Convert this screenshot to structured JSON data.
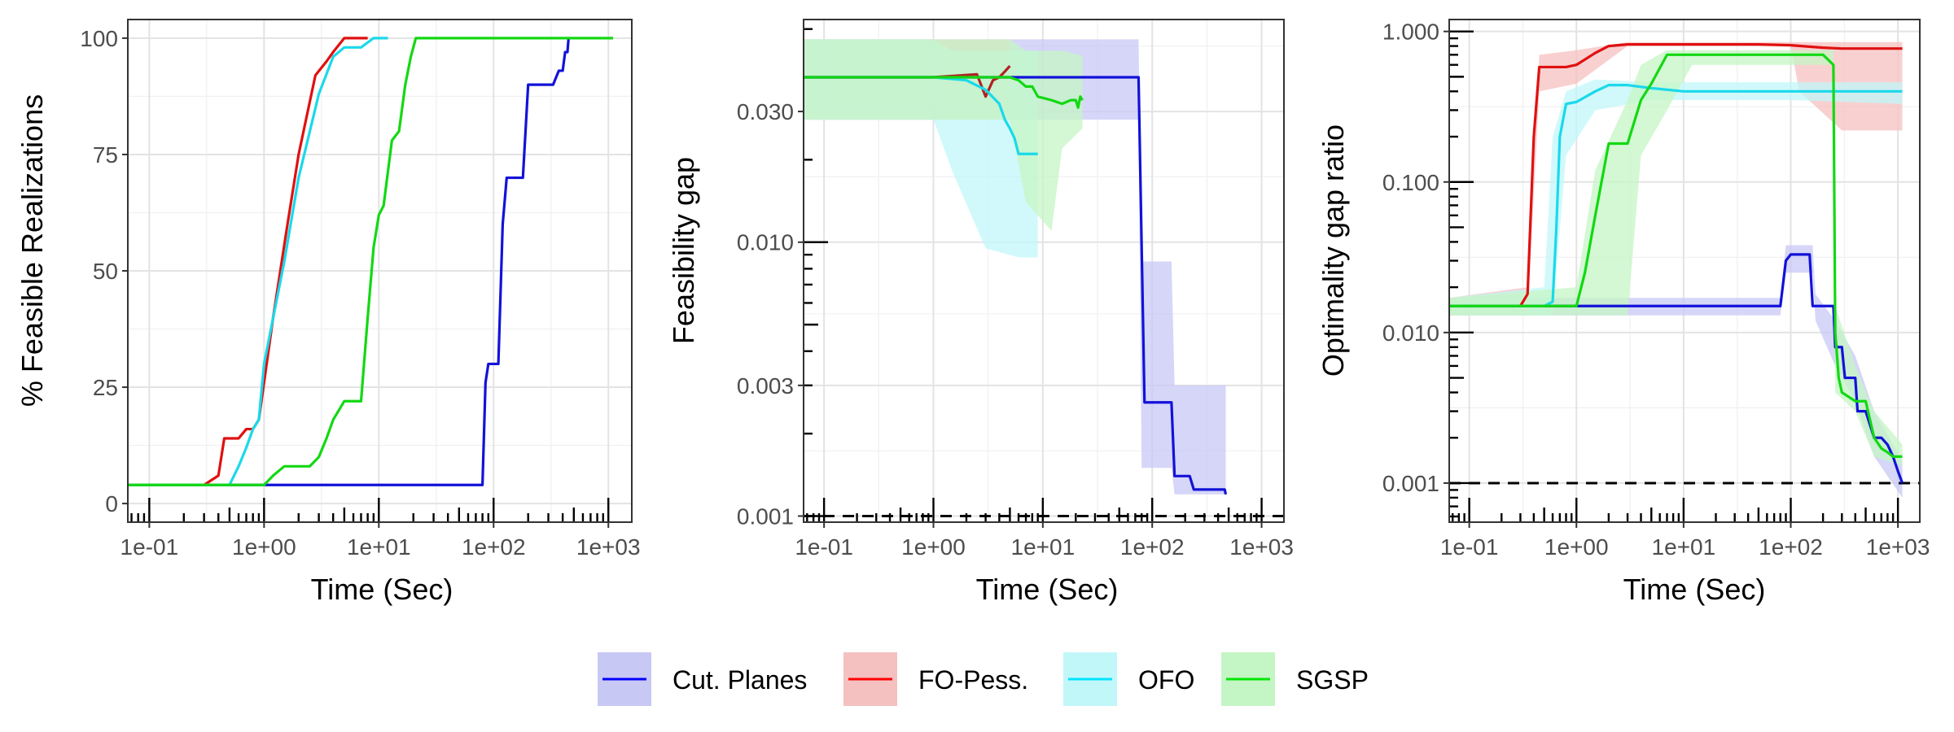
{
  "chart_data": [
    {
      "type": "line",
      "xlabel": "Time (Sec)",
      "ylabel": "% Feasible Realizations",
      "xscale": "log",
      "yscale": "linear",
      "xlim": [
        0.065,
        1600
      ],
      "ylim": [
        -4,
        104
      ],
      "xticks": [
        0.1,
        1,
        10,
        100,
        1000
      ],
      "xtick_labels": [
        "1e-01",
        "1e+00",
        "1e+01",
        "1e+02",
        "1e+03"
      ],
      "yticks": [
        0,
        25,
        50,
        75,
        100
      ],
      "ytick_labels": [
        "0",
        "25",
        "50",
        "75",
        "100"
      ],
      "grid": true,
      "series": [
        {
          "name": "Cut. Planes",
          "x": [
            0.065,
            80,
            85,
            90,
            110,
            120,
            130,
            180,
            200,
            290,
            330,
            370,
            400,
            420,
            440,
            450
          ],
          "y": [
            4,
            4,
            26,
            30,
            30,
            60,
            70,
            70,
            90,
            90,
            90,
            93,
            93,
            97,
            97,
            100
          ]
        },
        {
          "name": "FO-Pess.",
          "x": [
            0.065,
            0.3,
            0.4,
            0.45,
            0.6,
            0.7,
            0.8,
            0.9,
            1.0,
            1.2,
            1.6,
            2.0,
            2.8,
            3.5,
            4.0,
            5.0,
            6.0,
            8.0
          ],
          "y": [
            4,
            4,
            6,
            14,
            14,
            16,
            16,
            18,
            26,
            40,
            60,
            75,
            92,
            95,
            97,
            100,
            100,
            100
          ]
        },
        {
          "name": "OFO",
          "x": [
            0.065,
            0.5,
            0.6,
            0.7,
            0.8,
            0.9,
            1.0,
            1.5,
            2.0,
            3.0,
            4.0,
            5.0,
            7.0,
            9.0,
            10,
            12
          ],
          "y": [
            4,
            4,
            8,
            12,
            16,
            18,
            30,
            52,
            70,
            88,
            96,
            98,
            98,
            100,
            100,
            100
          ]
        },
        {
          "name": "SGSP",
          "x": [
            0.065,
            1.0,
            1.2,
            1.5,
            2.0,
            2.5,
            3.0,
            3.5,
            4.0,
            5.0,
            6.0,
            7.0,
            8.0,
            9.0,
            10,
            11,
            13,
            15,
            17,
            19,
            21,
            23,
            30,
            100,
            500,
            1100
          ],
          "y": [
            4,
            4,
            6,
            8,
            8,
            8,
            10,
            14,
            18,
            22,
            22,
            22,
            40,
            55,
            62,
            64,
            78,
            80,
            90,
            96,
            100,
            100,
            100,
            100,
            100,
            100
          ]
        }
      ]
    },
    {
      "type": "line",
      "xlabel": "Time (Sec)",
      "ylabel": "Feasibility gap",
      "xscale": "log",
      "yscale": "log",
      "xlim": [
        0.065,
        1600
      ],
      "ylim": [
        0.00095,
        0.065
      ],
      "xticks": [
        0.1,
        1,
        10,
        100,
        1000
      ],
      "xtick_labels": [
        "1e-01",
        "1e+00",
        "1e+01",
        "1e+02",
        "1e+03"
      ],
      "yticks": [
        0.001,
        0.003,
        0.01,
        0.03
      ],
      "ytick_labels": [
        "0.001",
        "0.003",
        "0.010",
        "0.030"
      ],
      "reference_line": 0.001,
      "grid": true,
      "series": [
        {
          "name": "Cut. Planes",
          "x": [
            0.065,
            1,
            10,
            60,
            75,
            85,
            150,
            160,
            220,
            240,
            330,
            460,
            470
          ],
          "y": [
            0.04,
            0.04,
            0.04,
            0.04,
            0.04,
            0.0026,
            0.0026,
            0.0014,
            0.0014,
            0.00125,
            0.00125,
            0.00125,
            0.0012
          ],
          "band": [
            [
              0.065,
              0.028,
              0.055
            ],
            [
              75,
              0.028,
              0.055
            ],
            [
              80,
              0.0015,
              0.0085
            ],
            [
              150,
              0.0015,
              0.0085
            ],
            [
              160,
              0.0012,
              0.003
            ],
            [
              470,
              0.0012,
              0.003
            ]
          ]
        },
        {
          "name": "FO-Pess.",
          "x": [
            0.065,
            1.0,
            2.5,
            3.0,
            3.5,
            4.0,
            4.5,
            5.0
          ],
          "y": [
            0.04,
            0.04,
            0.041,
            0.034,
            0.039,
            0.04,
            0.042,
            0.044
          ],
          "band": [
            [
              0.065,
              0.028,
              0.055
            ],
            [
              5.0,
              0.028,
              0.055
            ]
          ]
        },
        {
          "name": "OFO",
          "x": [
            0.065,
            1.0,
            2.0,
            3.0,
            4.0,
            4.5,
            5.0,
            5.5,
            6.0,
            8.0,
            9.0
          ],
          "y": [
            0.04,
            0.04,
            0.039,
            0.036,
            0.032,
            0.028,
            0.026,
            0.024,
            0.021,
            0.021,
            0.021
          ],
          "band": [
            [
              0.065,
              0.028,
              0.055
            ],
            [
              1.0,
              0.028,
              0.055
            ],
            [
              1.5,
              0.018,
              0.05
            ],
            [
              3.0,
              0.0095,
              0.05
            ],
            [
              6.0,
              0.0088,
              0.05
            ],
            [
              9.0,
              0.0088,
              0.05
            ]
          ]
        },
        {
          "name": "SGSP",
          "x": [
            0.065,
            1.0,
            2.0,
            3.0,
            5.0,
            6.0,
            7.0,
            8.0,
            9.0,
            12,
            15,
            18,
            20,
            21,
            22,
            23
          ],
          "y": [
            0.04,
            0.04,
            0.04,
            0.04,
            0.04,
            0.039,
            0.037,
            0.037,
            0.034,
            0.033,
            0.032,
            0.033,
            0.033,
            0.031,
            0.034,
            0.033
          ],
          "band": [
            [
              0.065,
              0.028,
              0.055
            ],
            [
              5.0,
              0.028,
              0.055
            ],
            [
              7.0,
              0.014,
              0.05
            ],
            [
              12,
              0.011,
              0.05
            ],
            [
              15,
              0.022,
              0.05
            ],
            [
              23,
              0.026,
              0.048
            ]
          ]
        }
      ]
    },
    {
      "type": "line",
      "xlabel": "Time (Sec)",
      "ylabel": "Optimality gap ratio",
      "xscale": "log",
      "yscale": "log",
      "xlim": [
        0.065,
        1600
      ],
      "ylim": [
        0.00055,
        1.2
      ],
      "xticks": [
        0.1,
        1,
        10,
        100,
        1000
      ],
      "xtick_labels": [
        "1e-01",
        "1e+00",
        "1e+01",
        "1e+02",
        "1e+03"
      ],
      "yticks": [
        0.001,
        0.01,
        0.1,
        1
      ],
      "ytick_labels": [
        "0.001",
        "0.010",
        "0.100",
        "1.000"
      ],
      "reference_line": 0.001,
      "grid": true,
      "series": [
        {
          "name": "Cut. Planes",
          "x": [
            0.065,
            1,
            10,
            80,
            90,
            100,
            120,
            150,
            160,
            170,
            250,
            260,
            300,
            320,
            400,
            420,
            500,
            600,
            700,
            800,
            900,
            1000,
            1100
          ],
          "y": [
            0.015,
            0.015,
            0.015,
            0.015,
            0.03,
            0.033,
            0.033,
            0.033,
            0.015,
            0.015,
            0.015,
            0.008,
            0.008,
            0.005,
            0.005,
            0.003,
            0.003,
            0.002,
            0.002,
            0.0018,
            0.0015,
            0.0012,
            0.001
          ],
          "band": [
            [
              0.065,
              0.013,
              0.017
            ],
            [
              80,
              0.013,
              0.017
            ],
            [
              90,
              0.025,
              0.038
            ],
            [
              160,
              0.025,
              0.038
            ],
            [
              170,
              0.012,
              0.018
            ],
            [
              260,
              0.006,
              0.012
            ],
            [
              400,
              0.0035,
              0.007
            ],
            [
              600,
              0.0015,
              0.003
            ],
            [
              1100,
              0.0008,
              0.0014
            ]
          ]
        },
        {
          "name": "FO-Pess.",
          "x": [
            0.065,
            0.3,
            0.35,
            0.4,
            0.45,
            0.8,
            1.0,
            1.5,
            2.0,
            3.0,
            10,
            50,
            100,
            200,
            300,
            500,
            1000,
            1100
          ],
          "y": [
            0.015,
            0.015,
            0.018,
            0.2,
            0.58,
            0.58,
            0.6,
            0.72,
            0.8,
            0.82,
            0.82,
            0.82,
            0.81,
            0.78,
            0.77,
            0.77,
            0.77,
            0.77
          ],
          "band": [
            [
              0.065,
              0.013,
              0.017
            ],
            [
              0.35,
              0.013,
              0.02
            ],
            [
              0.45,
              0.4,
              0.7
            ],
            [
              1.0,
              0.45,
              0.75
            ],
            [
              3.0,
              0.8,
              0.85
            ],
            [
              100,
              0.8,
              0.85
            ],
            [
              120,
              0.4,
              0.85
            ],
            [
              300,
              0.22,
              0.85
            ],
            [
              1100,
              0.22,
              0.85
            ]
          ]
        },
        {
          "name": "OFO",
          "x": [
            0.065,
            0.5,
            0.6,
            0.65,
            0.7,
            0.8,
            1.0,
            1.5,
            2.0,
            3.0,
            5.0,
            10,
            30,
            100,
            300,
            1000,
            1100
          ],
          "y": [
            0.015,
            0.015,
            0.016,
            0.05,
            0.2,
            0.33,
            0.34,
            0.4,
            0.44,
            0.44,
            0.42,
            0.4,
            0.4,
            0.4,
            0.4,
            0.4,
            0.4
          ],
          "band": [
            [
              0.065,
              0.013,
              0.017
            ],
            [
              0.5,
              0.013,
              0.02
            ],
            [
              0.6,
              0.013,
              0.2
            ],
            [
              0.8,
              0.15,
              0.4
            ],
            [
              1.5,
              0.3,
              0.48
            ],
            [
              5.0,
              0.35,
              0.46
            ],
            [
              100,
              0.35,
              0.46
            ],
            [
              1100,
              0.33,
              0.46
            ]
          ]
        },
        {
          "name": "SGSP",
          "x": [
            0.065,
            1.0,
            1.2,
            1.5,
            2.0,
            2.5,
            3.0,
            4.0,
            5.0,
            7.0,
            10,
            20,
            50,
            100,
            200,
            250,
            260,
            280,
            300,
            400,
            500,
            600,
            700,
            800,
            900,
            1000,
            1100
          ],
          "y": [
            0.015,
            0.015,
            0.025,
            0.06,
            0.18,
            0.18,
            0.18,
            0.35,
            0.45,
            0.7,
            0.7,
            0.7,
            0.7,
            0.7,
            0.7,
            0.6,
            0.01,
            0.005,
            0.004,
            0.0035,
            0.0035,
            0.002,
            0.0017,
            0.0016,
            0.0015,
            0.0015,
            0.0015
          ],
          "band": [
            [
              0.065,
              0.013,
              0.017
            ],
            [
              1.0,
              0.013,
              0.02
            ],
            [
              1.5,
              0.013,
              0.12
            ],
            [
              3.0,
              0.013,
              0.35
            ],
            [
              4.0,
              0.15,
              0.6
            ],
            [
              7.0,
              0.3,
              0.75
            ],
            [
              12,
              0.6,
              0.75
            ],
            [
              250,
              0.6,
              0.75
            ],
            [
              260,
              0.004,
              0.015
            ],
            [
              400,
              0.003,
              0.006
            ],
            [
              600,
              0.0015,
              0.003
            ],
            [
              1100,
              0.0013,
              0.0018
            ]
          ]
        }
      ]
    }
  ],
  "legend": {
    "position": "bottom",
    "items": [
      {
        "label": "Cut. Planes",
        "color": "#0000ff",
        "fill": "#c8c8f5"
      },
      {
        "label": "FO-Pess.",
        "color": "#ff0000",
        "fill": "#f5c0c0"
      },
      {
        "label": "OFO",
        "color": "#00e5ff",
        "fill": "#c2f7fa"
      },
      {
        "label": "SGSP",
        "color": "#00e600",
        "fill": "#c4f5c4"
      }
    ]
  },
  "colors": {
    "Cut. Planes": "#1212d9",
    "FO-Pess.": "#e01010",
    "FO-Pess. feasibility": "#b22222",
    "OFO": "#1ad9ea",
    "SGSP": "#13d813"
  }
}
